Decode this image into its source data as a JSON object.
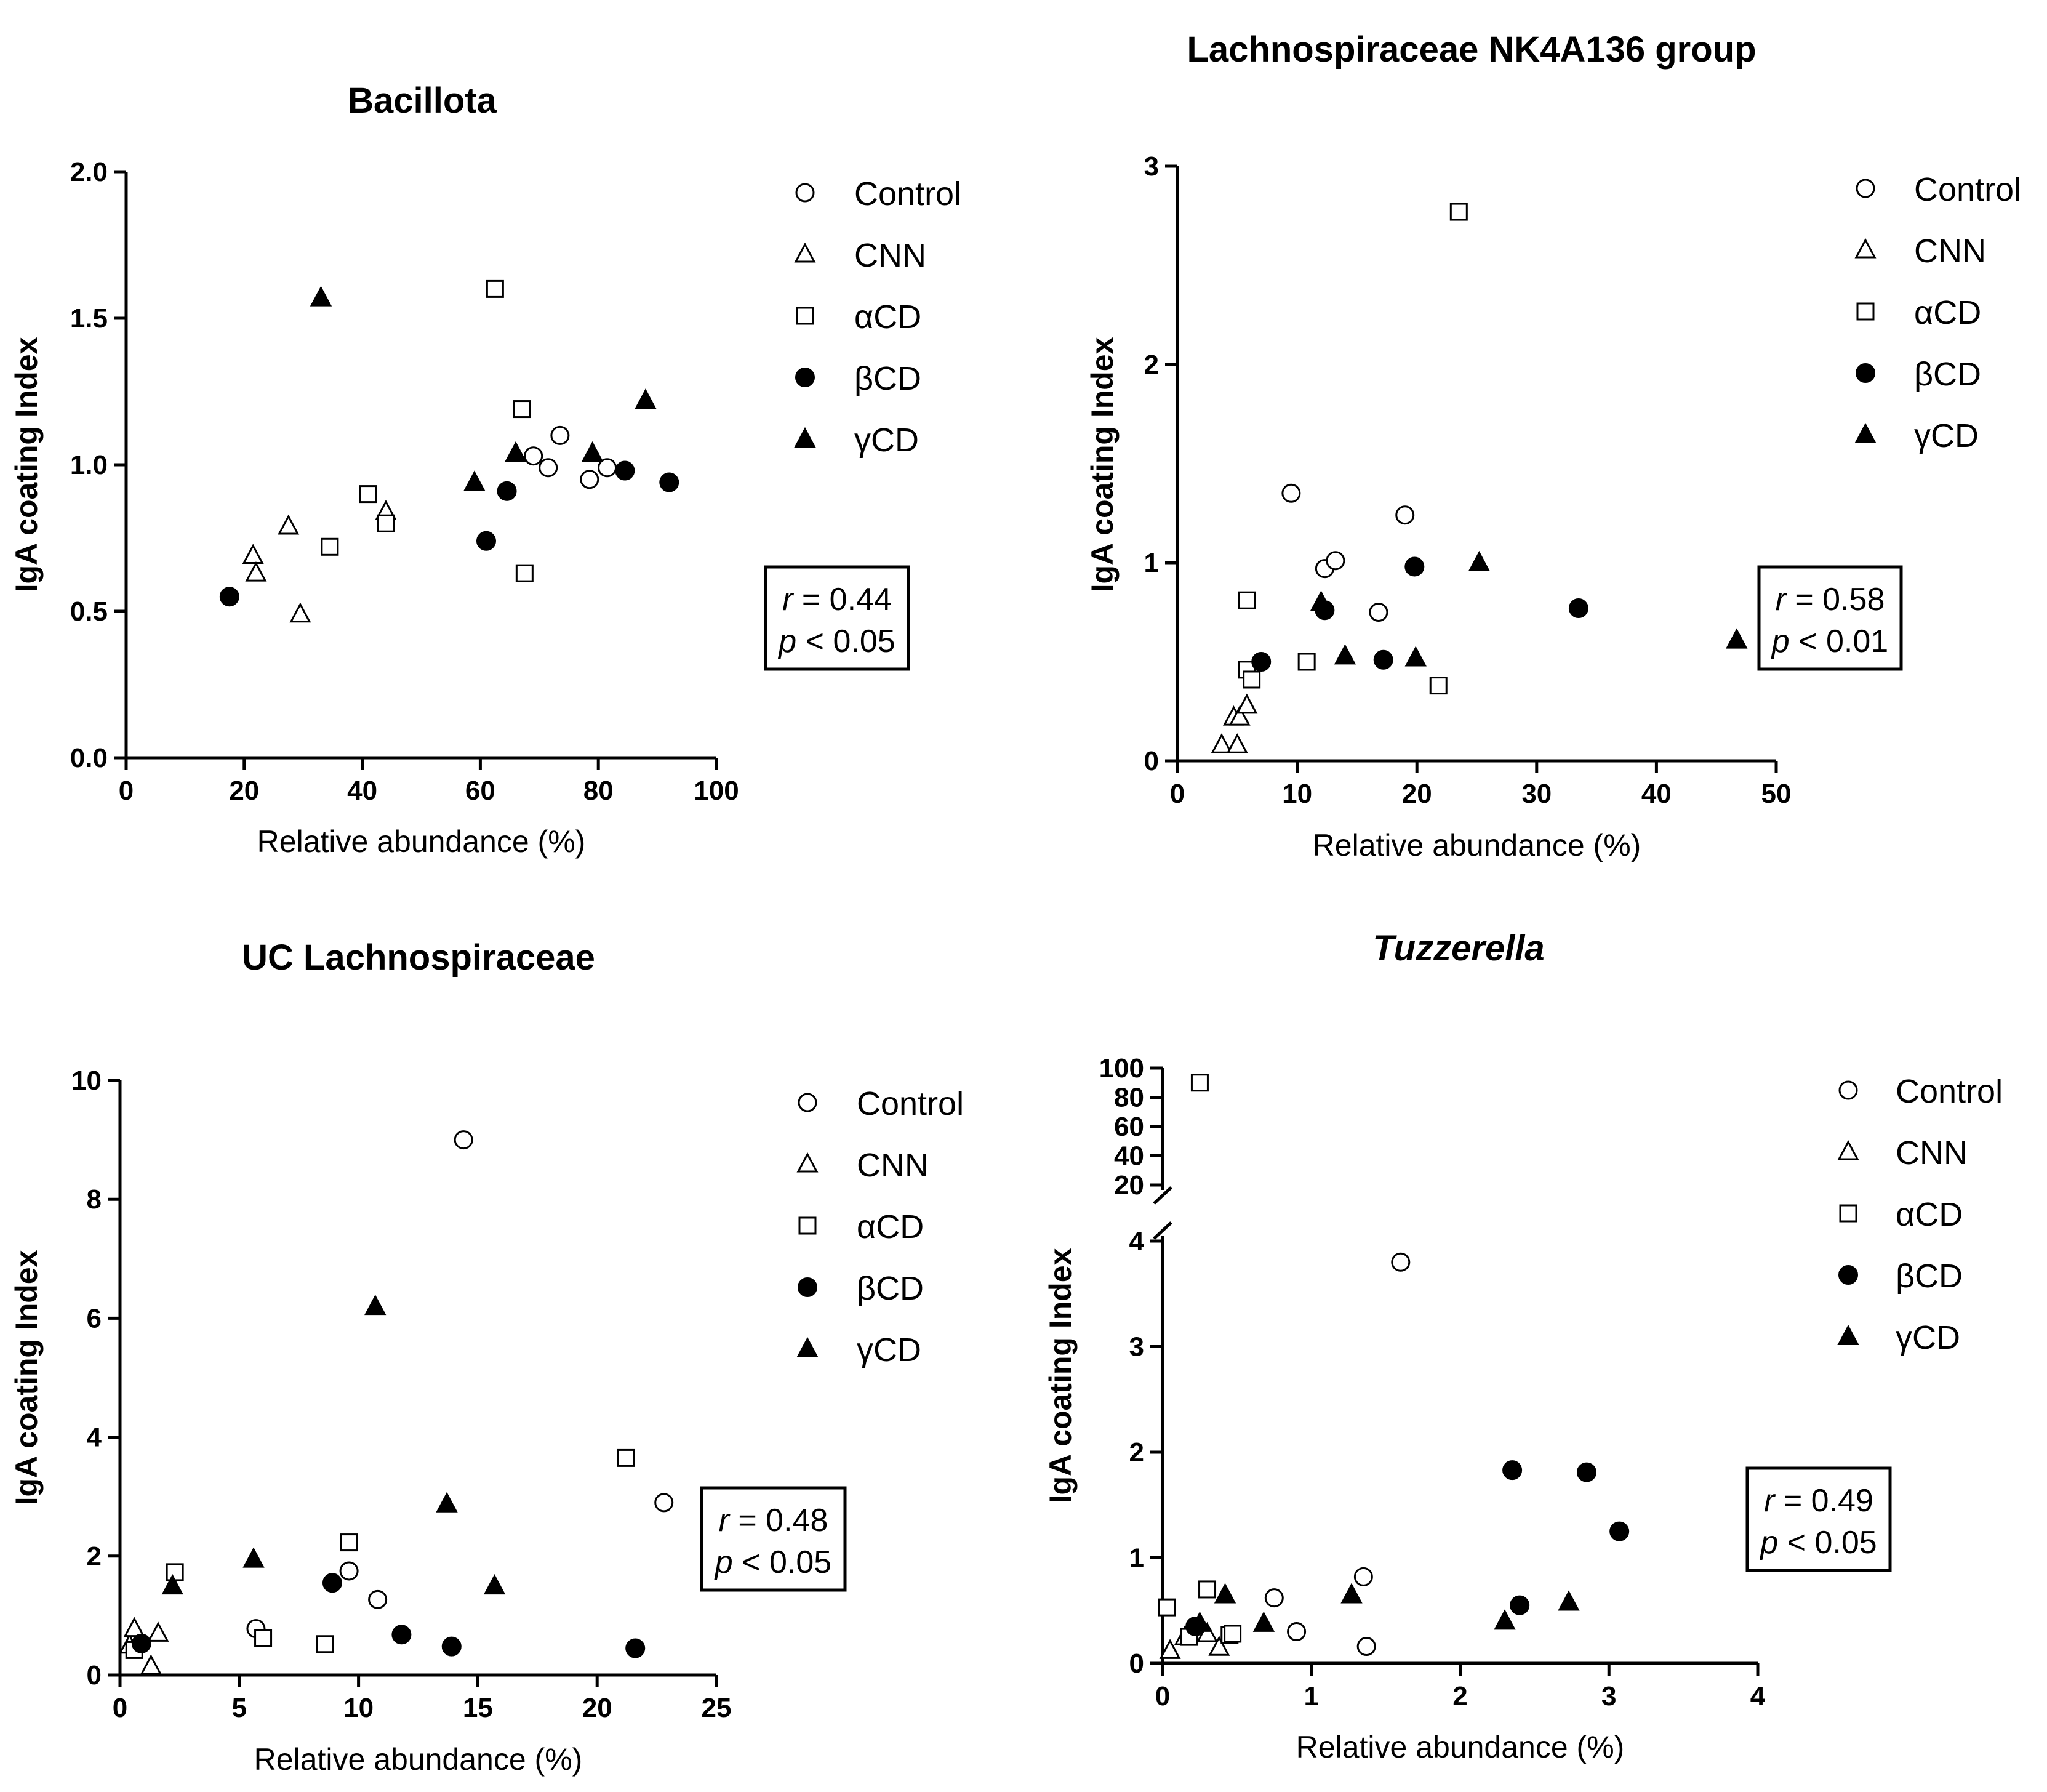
{
  "legend": {
    "symbols": {
      "Control": "open-circle",
      "CNN": "open-triangle",
      "αCD": "open-square",
      "βCD": "filled-circle",
      "γCD": "filled-triangle"
    }
  },
  "chart_data": [
    {
      "type": "scatter",
      "title": "Bacillota",
      "title_italic": false,
      "xlabel": "Relative abundance (%)",
      "ylabel": "IgA coating Index",
      "xlim": [
        0,
        100
      ],
      "ylim": [
        0,
        2.0
      ],
      "xticks": [
        0,
        20,
        40,
        60,
        80,
        100
      ],
      "xtick_labels": [
        "0",
        "20",
        "40",
        "60",
        "80",
        "100"
      ],
      "yticks": [
        0.0,
        0.5,
        1.0,
        1.5,
        2.0
      ],
      "ytick_labels": [
        "0.0",
        "0.5",
        "1.0",
        "1.5",
        "2.0"
      ],
      "legend": [
        "Control",
        "CNN",
        "αCD",
        "βCD",
        "γCD"
      ],
      "stats": {
        "r_label": "r",
        "r_text": " = 0.44",
        "p_label": "p",
        "p_text": " < 0.05"
      },
      "series": [
        {
          "name": "Control",
          "x": [
            69,
            71.5,
            73.5,
            78.5,
            81.5
          ],
          "y": [
            1.03,
            0.99,
            1.1,
            0.95,
            0.99
          ]
        },
        {
          "name": "CNN",
          "x": [
            21.5,
            22,
            27.5,
            29.5,
            44
          ],
          "y": [
            0.69,
            0.63,
            0.79,
            0.49,
            0.84
          ]
        },
        {
          "name": "αCD",
          "x": [
            34.5,
            41,
            44,
            62.5,
            67,
            67.5
          ],
          "y": [
            0.72,
            0.9,
            0.8,
            1.6,
            1.19,
            0.63
          ]
        },
        {
          "name": "βCD",
          "x": [
            17.5,
            61,
            64.5,
            84.5,
            92
          ],
          "y": [
            0.55,
            0.74,
            0.91,
            0.98,
            0.94
          ]
        },
        {
          "name": "γCD",
          "x": [
            33,
            59,
            66,
            79,
            88
          ],
          "y": [
            1.57,
            0.94,
            1.04,
            1.04,
            1.22
          ]
        }
      ]
    },
    {
      "type": "scatter",
      "title": "Lachnospiraceae NK4A136 group",
      "title_italic": false,
      "xlabel": "Relative abundance (%)",
      "ylabel": "IgA coating Index",
      "xlim": [
        0,
        50
      ],
      "ylim": [
        0,
        3
      ],
      "xticks": [
        0,
        10,
        20,
        30,
        40,
        50
      ],
      "xtick_labels": [
        "0",
        "10",
        "20",
        "30",
        "40",
        "50"
      ],
      "yticks": [
        0,
        1,
        2,
        3
      ],
      "ytick_labels": [
        "0",
        "1",
        "2",
        "3"
      ],
      "legend": [
        "Control",
        "CNN",
        "αCD",
        "βCD",
        "γCD"
      ],
      "stats": {
        "r_label": "r",
        "r_text": " = 0.58",
        "p_label": "p",
        "p_text": " < 0.01"
      },
      "series": [
        {
          "name": "Control",
          "x": [
            9.5,
            12.3,
            13.2,
            16.8,
            19
          ],
          "y": [
            1.35,
            0.97,
            1.01,
            0.75,
            1.24
          ]
        },
        {
          "name": "CNN",
          "x": [
            3.7,
            4.7,
            5,
            5.2,
            5.8
          ],
          "y": [
            0.08,
            0.22,
            0.08,
            0.22,
            0.28
          ]
        },
        {
          "name": "αCD",
          "x": [
            5.8,
            5.8,
            6.2,
            10.8,
            21.8,
            23.5
          ],
          "y": [
            0.81,
            0.46,
            0.41,
            0.5,
            0.38,
            2.77
          ]
        },
        {
          "name": "βCD",
          "x": [
            7,
            12.3,
            17.2,
            19.8,
            33.5
          ],
          "y": [
            0.5,
            0.76,
            0.51,
            0.98,
            0.77
          ]
        },
        {
          "name": "γCD",
          "x": [
            12,
            14,
            19.9,
            25.2,
            46.7
          ],
          "y": [
            0.8,
            0.53,
            0.52,
            1.0,
            0.61
          ]
        }
      ]
    },
    {
      "type": "scatter",
      "title": "UC Lachnospiraceae",
      "title_italic": false,
      "xlabel": "Relative abundance (%)",
      "ylabel": "IgA coating Index",
      "xlim": [
        0,
        25
      ],
      "ylim": [
        0,
        10
      ],
      "xticks": [
        0,
        5,
        10,
        15,
        20,
        25
      ],
      "xtick_labels": [
        "0",
        "5",
        "10",
        "15",
        "20",
        "25"
      ],
      "yticks": [
        0,
        2,
        4,
        6,
        8,
        10
      ],
      "ytick_labels": [
        "0",
        "2",
        "4",
        "6",
        "8",
        "10"
      ],
      "legend": [
        "Control",
        "CNN",
        "αCD",
        "βCD",
        "γCD"
      ],
      "stats": {
        "r_label": "r",
        "r_text": " = 0.48",
        "p_label": "p",
        "p_text": " < 0.05"
      },
      "series": [
        {
          "name": "Control",
          "x": [
            5.7,
            9.6,
            10.8,
            14.4,
            22.8
          ],
          "y": [
            0.78,
            1.75,
            1.27,
            9.0,
            2.9
          ]
        },
        {
          "name": "CNN",
          "x": [
            0.4,
            0.6,
            1.3,
            1.6
          ],
          "y": [
            0.5,
            0.78,
            0.15,
            0.7
          ]
        },
        {
          "name": "αCD",
          "x": [
            0.6,
            2.3,
            6,
            8.6,
            9.6,
            21.2
          ],
          "y": [
            0.42,
            1.73,
            0.62,
            0.52,
            2.23,
            3.65
          ]
        },
        {
          "name": "βCD",
          "x": [
            0.9,
            8.9,
            11.8,
            13.9,
            21.6
          ],
          "y": [
            0.53,
            1.55,
            0.68,
            0.48,
            0.45
          ]
        },
        {
          "name": "γCD",
          "x": [
            2.2,
            5.6,
            10.7,
            13.7,
            15.7
          ],
          "y": [
            1.5,
            1.95,
            6.2,
            2.88,
            1.5
          ]
        }
      ]
    },
    {
      "type": "scatter",
      "title": "Tuzzerella",
      "title_italic": true,
      "xlabel": "Relative abundance (%)",
      "ylabel": "IgA coating Index",
      "xlim": [
        0,
        4
      ],
      "ylim": [
        0,
        100
      ],
      "axis_break": {
        "lower_max": 4,
        "upper_min": 20,
        "upper_max": 100
      },
      "xticks": [
        0,
        1,
        2,
        3,
        4
      ],
      "xtick_labels": [
        "0",
        "1",
        "2",
        "3",
        "4"
      ],
      "yticks": [
        0,
        1,
        2,
        3,
        4,
        20,
        40,
        60,
        80,
        100
      ],
      "ytick_labels": [
        "0",
        "1",
        "2",
        "3",
        "4",
        "20",
        "40",
        "60",
        "80",
        "100"
      ],
      "legend": [
        "Control",
        "CNN",
        "αCD",
        "βCD",
        "γCD"
      ],
      "stats": {
        "r_label": "r",
        "r_text": " = 0.49",
        "p_label": "p",
        "p_text": " < 0.05"
      },
      "series": [
        {
          "name": "Control",
          "x": [
            0.75,
            0.9,
            1.35,
            1.37,
            1.6
          ],
          "y": [
            0.62,
            0.3,
            0.82,
            0.16,
            3.8
          ]
        },
        {
          "name": "CNN",
          "x": [
            0.05,
            0.15,
            0.3,
            0.38
          ],
          "y": [
            0.12,
            0.25,
            0.28,
            0.15
          ]
        },
        {
          "name": "αCD",
          "x": [
            0.03,
            0.18,
            0.25,
            0.3,
            0.45,
            0.47
          ],
          "y": [
            0.53,
            0.25,
            90,
            0.7,
            0.27,
            0.28
          ]
        },
        {
          "name": "βCD",
          "x": [
            0.22,
            2.35,
            2.4,
            2.85,
            3.07
          ],
          "y": [
            0.35,
            1.83,
            0.55,
            1.81,
            1.25
          ]
        },
        {
          "name": "γCD",
          "x": [
            0.25,
            0.42,
            0.68,
            1.27,
            2.3,
            2.73
          ],
          "y": [
            0.38,
            0.65,
            0.38,
            0.65,
            0.4,
            0.58
          ]
        }
      ]
    }
  ]
}
